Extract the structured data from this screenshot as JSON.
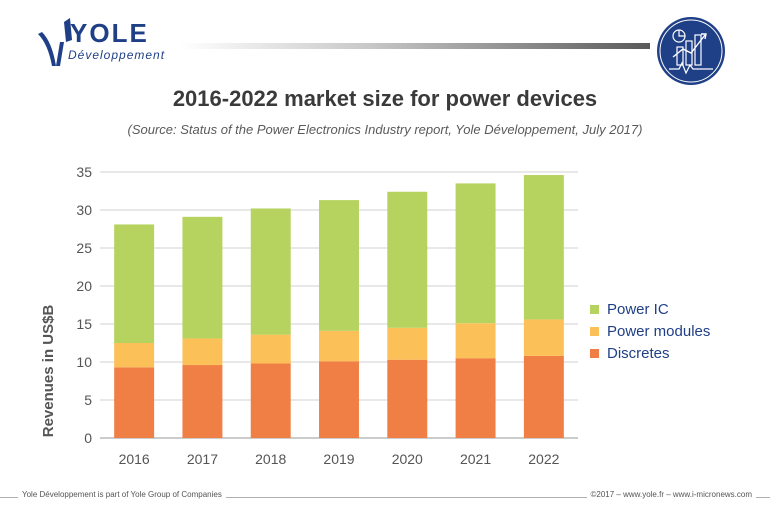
{
  "brand": {
    "name": "YOLE",
    "sub": "Développement"
  },
  "header": {
    "title": "2016-2022 market size for power devices",
    "subtitle": "(Source: Status of the Power Electronics Industry report, Yole Développement, July 2017)"
  },
  "chart_data": {
    "type": "bar",
    "stacked": true,
    "categories": [
      "2016",
      "2017",
      "2018",
      "2019",
      "2020",
      "2021",
      "2022"
    ],
    "series": [
      {
        "name": "Discretes",
        "color": "#f07f45",
        "values": [
          9.3,
          9.6,
          9.8,
          10.1,
          10.3,
          10.5,
          10.8
        ]
      },
      {
        "name": "Power modules",
        "color": "#fcc058",
        "values": [
          3.2,
          3.5,
          3.8,
          4.0,
          4.2,
          4.6,
          4.8
        ]
      },
      {
        "name": "Power IC",
        "color": "#b5d35e",
        "values": [
          15.6,
          16.0,
          16.6,
          17.2,
          17.9,
          18.4,
          19.0
        ]
      }
    ],
    "ylabel": "Revenues in US$B",
    "xlabel": "",
    "ylim": [
      0,
      35
    ],
    "yticks": [
      0,
      5,
      10,
      15,
      20,
      25,
      30,
      35
    ],
    "grid": true,
    "legend_position": "right",
    "legend_order": [
      "Power IC",
      "Power modules",
      "Discretes"
    ]
  },
  "footer": {
    "left": "Yole Développement is part of Yole Group of Companies",
    "right": "©2017 – www.yole.fr – www.i-micronews.com"
  }
}
